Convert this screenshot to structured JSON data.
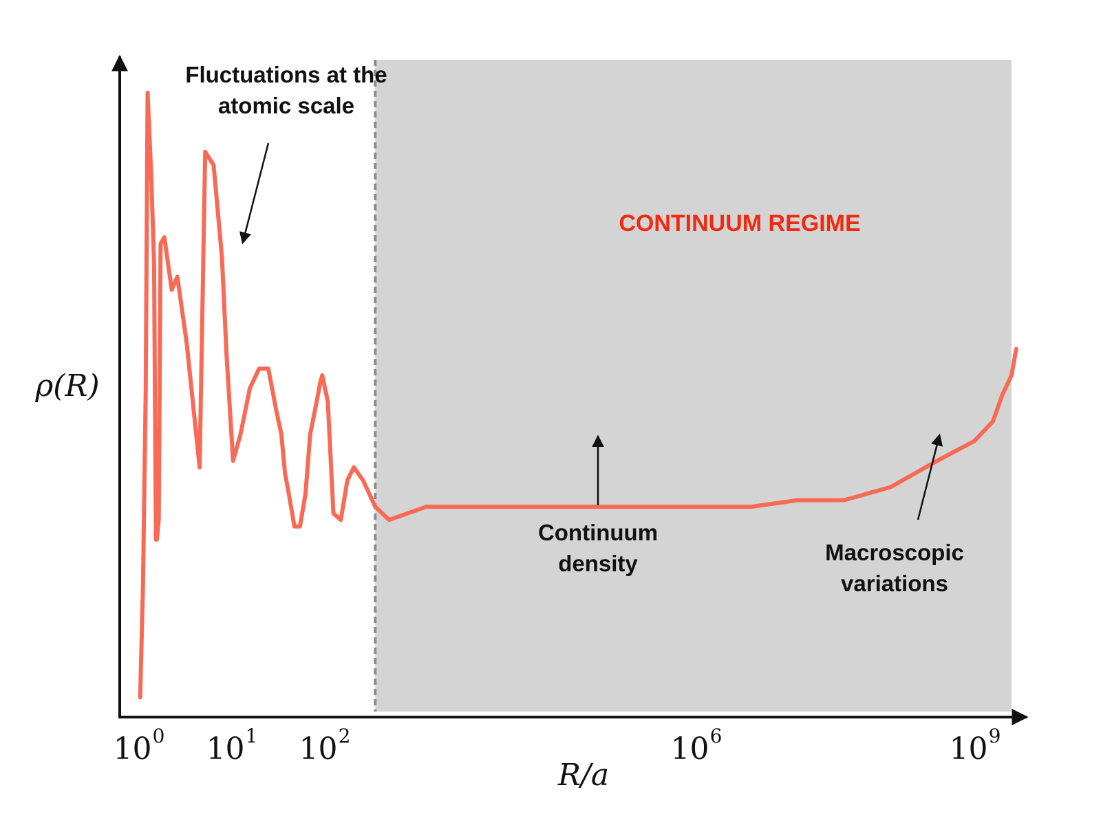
{
  "chart_data": {
    "type": "line",
    "title": "",
    "xlabel": "R/a",
    "ylabel": "ρ(R)",
    "x_scale": "log10",
    "xlim": [
      -0.3,
      9.3
    ],
    "ylim": [
      0,
      10
    ],
    "grid": false,
    "x_ticks": [
      {
        "base": "10",
        "exp": "0",
        "value": 0
      },
      {
        "base": "10",
        "exp": "1",
        "value": 1
      },
      {
        "base": "10",
        "exp": "2",
        "value": 2
      },
      {
        "base": "10",
        "exp": "6",
        "value": 6
      },
      {
        "base": "10",
        "exp": "9",
        "value": 9
      }
    ],
    "continuum_boundary_log10": 2.45,
    "series": [
      {
        "name": "ρ(R)",
        "color": "#f86a55",
        "x": [
          -0.08,
          -0.05,
          -0.02,
          0.0,
          0.04,
          0.07,
          0.09,
          0.1,
          0.12,
          0.14,
          0.18,
          0.22,
          0.26,
          0.32,
          0.42,
          0.56,
          0.62,
          0.71,
          0.8,
          0.85,
          0.92,
          1.0,
          1.1,
          1.2,
          1.3,
          1.38,
          1.44,
          1.48,
          1.52,
          1.58,
          1.64,
          1.7,
          1.75,
          1.82,
          1.86,
          1.88,
          1.94,
          2.0,
          2.08,
          2.15,
          2.22,
          2.32,
          2.45,
          2.6,
          3.0,
          3.5,
          4.0,
          4.5,
          5.0,
          5.5,
          6.0,
          6.5,
          7.0,
          7.5,
          8.0,
          8.5,
          8.9,
          9.1,
          9.2,
          9.3,
          9.35
        ],
        "y": [
          0.3,
          2.0,
          5.0,
          9.5,
          8.2,
          6.9,
          2.7,
          2.7,
          3.0,
          7.2,
          7.3,
          6.9,
          6.5,
          6.7,
          5.7,
          3.8,
          8.6,
          8.4,
          7.0,
          5.5,
          3.9,
          4.3,
          5.0,
          5.3,
          5.3,
          4.7,
          4.3,
          3.7,
          3.4,
          2.9,
          2.9,
          3.4,
          4.3,
          4.8,
          5.1,
          5.2,
          4.8,
          3.1,
          3.0,
          3.6,
          3.8,
          3.6,
          3.2,
          3.0,
          3.2,
          3.2,
          3.2,
          3.2,
          3.2,
          3.2,
          3.2,
          3.2,
          3.3,
          3.3,
          3.5,
          3.9,
          4.2,
          4.5,
          4.9,
          5.2,
          5.6
        ]
      }
    ]
  },
  "labels": {
    "fluctuations_line1": "Fluctuations at the",
    "fluctuations_line2": "atomic scale",
    "continuum_regime": "CONTINUUM REGIME",
    "continuum_density_line1": "Continuum",
    "continuum_density_line2": "density",
    "macroscopic_line1": "Macroscopic",
    "macroscopic_line2": "variations"
  },
  "colors": {
    "curve": "#f86a55",
    "regime_text": "#f02a10",
    "shaded": "#d4d4d4",
    "dashed": "#8c8c8c",
    "axis": "#111111"
  }
}
